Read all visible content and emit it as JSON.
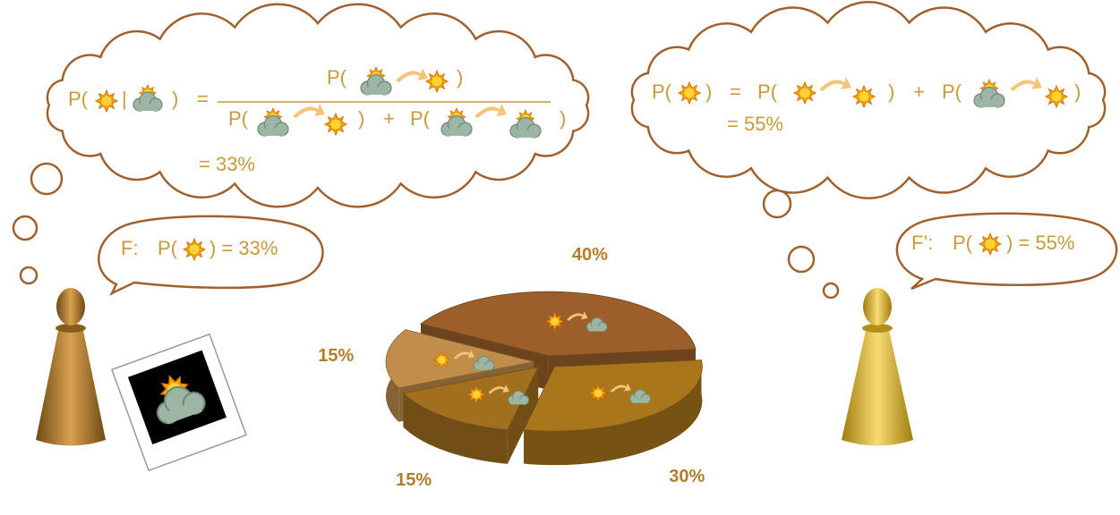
{
  "left_formula": {
    "lhs": [
      "P(",
      "|",
      ")",
      "="
    ],
    "numerator": [
      "P(",
      ")"
    ],
    "denominator": [
      "P(",
      ")",
      "+",
      "P(",
      ")"
    ],
    "result": "=  33%"
  },
  "left_speech": {
    "prefix": "F:",
    "open": "P(",
    "result": ")  =  33%"
  },
  "right_formula": {
    "lhs": [
      "P(",
      ")",
      "=",
      "P(",
      ")",
      "+",
      "P(",
      ")"
    ],
    "result": "=  55%"
  },
  "right_speech": {
    "prefix": "F’:",
    "open": "P(",
    "result": ")  =  55%"
  },
  "pie": {
    "slices": [
      {
        "value": 40,
        "label": "40%",
        "color": "#9c5f2b"
      },
      {
        "value": 30,
        "label": "30%",
        "color": "#a9761c"
      },
      {
        "value": 15,
        "label": "15%",
        "color": "#a26f1f"
      },
      {
        "value": 15,
        "label": "15%",
        "color": "#c08d4a"
      }
    ]
  }
}
